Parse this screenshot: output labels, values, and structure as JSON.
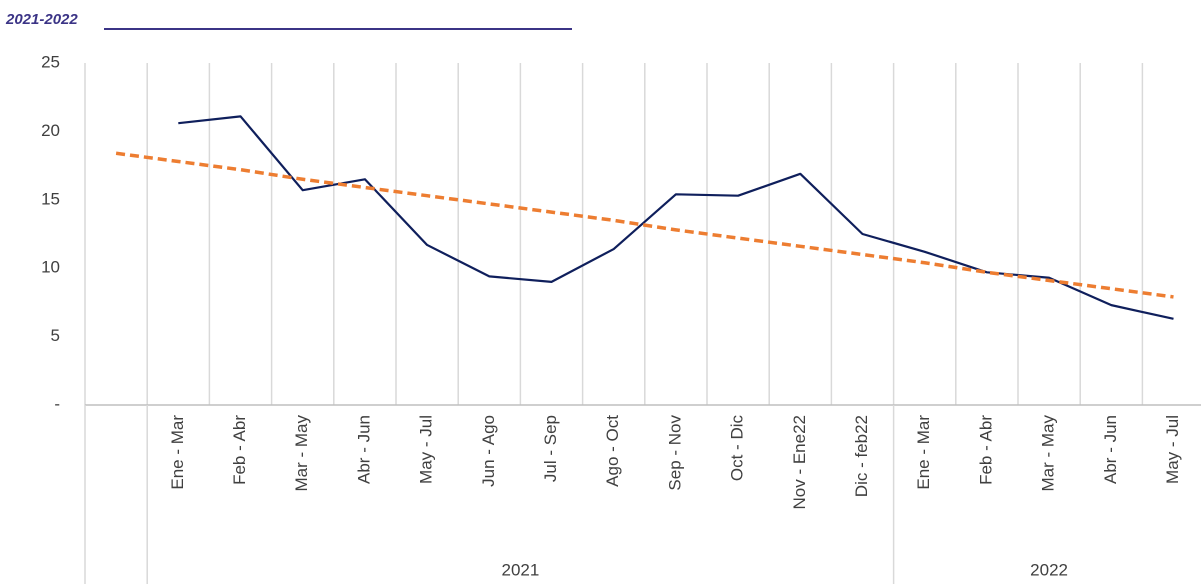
{
  "chart_data": {
    "type": "line",
    "title": "2021-2022",
    "categories": [
      null,
      "Ene - Mar",
      "Feb - Abr",
      "Mar - May",
      "Abr - Jun",
      "May - Jul",
      "Jun - Ago",
      "Jul - Sep",
      "Ago - Oct",
      "Sep - Nov",
      "Oct - Dic",
      "Nov - Ene22",
      "Dic - feb22",
      "Ene - Mar",
      "Feb - Abr",
      "Mar - May",
      "Abr - Jun",
      "May - Jul"
    ],
    "groups": [
      {
        "label": "2021",
        "size": 12
      },
      {
        "label": "2022",
        "size": 5
      }
    ],
    "series": [
      {
        "color": "#0f1f5c",
        "values": [
          null,
          20.6,
          21.1,
          15.7,
          16.5,
          11.7,
          9.4,
          9.0,
          11.4,
          15.4,
          15.3,
          16.9,
          12.5,
          11.2,
          9.7,
          9.3,
          7.3,
          6.3
        ]
      },
      {
        "color": "#ed7d31",
        "dashed": true,
        "values": [
          18.4,
          17.8,
          17.2,
          16.5,
          15.9,
          15.3,
          14.7,
          14.1,
          13.5,
          12.8,
          12.2,
          11.6,
          11.0,
          10.4,
          9.7,
          9.1,
          8.5,
          7.9
        ]
      }
    ],
    "ylim": [
      0,
      25
    ],
    "yticks": [
      {
        "value": 0,
        "label": "-"
      },
      5,
      10,
      15,
      20,
      25
    ],
    "grid": true
  }
}
